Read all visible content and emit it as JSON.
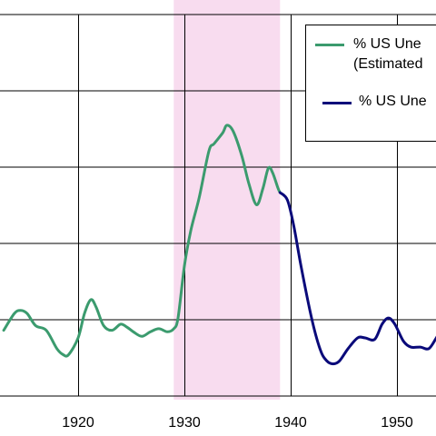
{
  "chart_data": {
    "type": "line",
    "title": "",
    "xlabel": "",
    "ylabel": "",
    "xlim": [
      1913,
      1955
    ],
    "x_ticks": [
      1920,
      1930,
      1940,
      1950
    ],
    "x_tick_labels": [
      "1920",
      "1930",
      "1940",
      "1950"
    ],
    "grid": true,
    "legend_position": "top-right",
    "shaded_region": {
      "x_start": 1929,
      "x_end": 1939,
      "color": "#f8dcef"
    },
    "series": [
      {
        "name": "% US Unemployment (Estimated)",
        "legend_lines": [
          "% US Une",
          "(Estimated"
        ],
        "color": "#3b9b6e",
        "points": [
          [
            1913.0,
            4.3
          ],
          [
            1914.0,
            5.4
          ],
          [
            1914.6,
            5.6
          ],
          [
            1915.2,
            5.4
          ],
          [
            1916.0,
            4.6
          ],
          [
            1917.0,
            4.3
          ],
          [
            1918.0,
            3.1
          ],
          [
            1918.6,
            2.7
          ],
          [
            1919.1,
            2.7
          ],
          [
            1920.0,
            3.8
          ],
          [
            1920.6,
            5.4
          ],
          [
            1921.2,
            6.3
          ],
          [
            1921.7,
            5.8
          ],
          [
            1922.4,
            4.6
          ],
          [
            1923.2,
            4.3
          ],
          [
            1924.0,
            4.7
          ],
          [
            1924.6,
            4.5
          ],
          [
            1925.2,
            4.2
          ],
          [
            1926.0,
            3.9
          ],
          [
            1926.8,
            4.2
          ],
          [
            1927.6,
            4.4
          ],
          [
            1928.4,
            4.2
          ],
          [
            1929.0,
            4.4
          ],
          [
            1929.4,
            5.1
          ],
          [
            1930.0,
            8.5
          ],
          [
            1930.6,
            10.8
          ],
          [
            1931.4,
            13.0
          ],
          [
            1932.3,
            16.0
          ],
          [
            1932.8,
            16.5
          ],
          [
            1933.6,
            17.2
          ],
          [
            1934.0,
            17.7
          ],
          [
            1934.6,
            17.3
          ],
          [
            1935.4,
            15.7
          ],
          [
            1936.1,
            13.8
          ],
          [
            1936.8,
            12.5
          ],
          [
            1937.4,
            13.6
          ],
          [
            1937.9,
            14.9
          ],
          [
            1938.3,
            14.6
          ],
          [
            1938.8,
            13.6
          ],
          [
            1939.0,
            13.3
          ]
        ]
      },
      {
        "name": "% US Unemployment",
        "legend_lines": [
          "% US Une"
        ],
        "color": "#0a0a7a",
        "points": [
          [
            1939.0,
            13.3
          ],
          [
            1939.7,
            12.8
          ],
          [
            1940.3,
            11.1
          ],
          [
            1941.0,
            8.4
          ],
          [
            1942.0,
            5.0
          ],
          [
            1942.8,
            3.0
          ],
          [
            1943.4,
            2.3
          ],
          [
            1944.0,
            2.1
          ],
          [
            1944.6,
            2.3
          ],
          [
            1945.4,
            3.1
          ],
          [
            1946.3,
            3.8
          ],
          [
            1947.0,
            3.8
          ],
          [
            1947.9,
            3.7
          ],
          [
            1948.6,
            4.7
          ],
          [
            1949.2,
            5.1
          ],
          [
            1949.8,
            4.7
          ],
          [
            1950.6,
            3.6
          ],
          [
            1951.3,
            3.2
          ],
          [
            1952.2,
            3.2
          ],
          [
            1953.0,
            3.1
          ],
          [
            1953.7,
            3.8
          ],
          [
            1954.4,
            4.6
          ],
          [
            1955.0,
            5.2
          ]
        ]
      }
    ]
  }
}
